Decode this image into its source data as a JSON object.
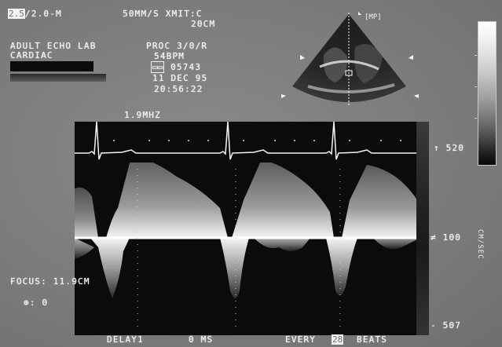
{
  "header": {
    "probe_freq_highlight": "2.5",
    "probe_freq_rest": "/2.0-M",
    "sweep": "50MM/S XMIT:C",
    "depth": "20CM",
    "lab": "ADULT ECHO LAB",
    "dept": "CARDIAC",
    "proc": "PROC 3/0/R",
    "bpm": "54BPM",
    "id_icon": "id-card-icon",
    "patient_id": "05743",
    "date": "11 DEC 95",
    "time": "20:56:22",
    "orientation_marker": "[MP]"
  },
  "doppler": {
    "frequency": "1.9MHZ",
    "scale_top": "520",
    "scale_baseline": "100",
    "scale_bottom": "507",
    "scale_unit_vertical": "CM/SEC",
    "focus": "FOCUS: 11.9CM",
    "angle": "0",
    "angle_icon": "angle-icon"
  },
  "footer": {
    "delay_label": "DELAY1",
    "delay_value": "0 MS",
    "every_label": "EVERY",
    "beats_count": "28",
    "beats_label": "BEATS"
  },
  "colors": {
    "background": "#7d7d7d",
    "text": "#f1f1f1",
    "image_black": "#0b0b0b"
  }
}
